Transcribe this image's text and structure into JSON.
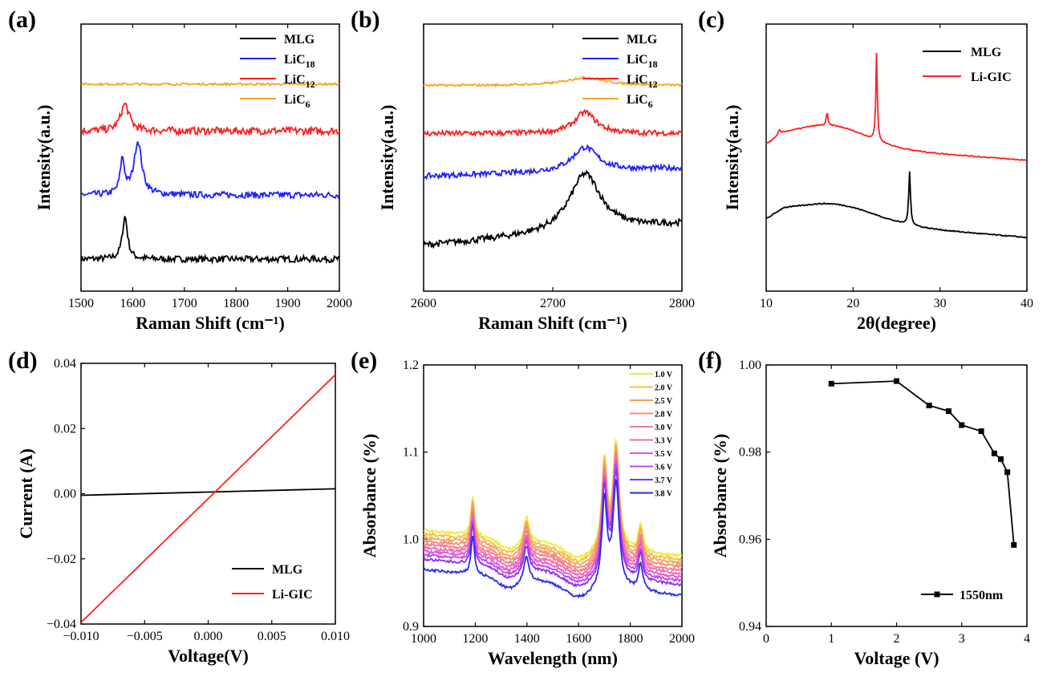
{
  "figure": {
    "colors": {
      "MLG": "#000000",
      "LiC18": "#1f1fff",
      "LiC12": "#ff1f1f",
      "LiC6": "#f5a623",
      "LiGIC": "#ff1f1f"
    }
  },
  "chart_data": [
    {
      "id": "a",
      "panel_label": "(a)",
      "type": "line",
      "title": "",
      "xlabel": "Raman Shift (cm⁻¹)",
      "ylabel": "Intensity(a.u.)",
      "xlim": [
        1500,
        2000
      ],
      "ylim": [
        0,
        1
      ],
      "xticks": [
        1500,
        1600,
        1700,
        1800,
        1900,
        2000
      ],
      "yticks": [],
      "legend": [
        {
          "label": "MLG",
          "sub": ""
        },
        {
          "label": "LiC",
          "sub": "18"
        },
        {
          "label": "LiC",
          "sub": "12"
        },
        {
          "label": "LiC",
          "sub": "6"
        }
      ],
      "series": [
        {
          "name": "MLG",
          "color": "#000000",
          "baseline": 0.12,
          "noise": 0.012,
          "peaks": [
            [
              1585,
              0.16,
              6
            ]
          ]
        },
        {
          "name": "LiC18",
          "color": "#1f1fff",
          "baseline": 0.36,
          "noise": 0.012,
          "peaks": [
            [
              1580,
              0.13,
              5
            ],
            [
              1610,
              0.2,
              9
            ]
          ]
        },
        {
          "name": "LiC12",
          "color": "#ff1f1f",
          "baseline": 0.6,
          "noise": 0.014,
          "peaks": [
            [
              1585,
              0.1,
              10
            ]
          ]
        },
        {
          "name": "LiC6",
          "color": "#f5a623",
          "baseline": 0.775,
          "noise": 0.004,
          "peaks": []
        }
      ]
    },
    {
      "id": "b",
      "panel_label": "(b)",
      "type": "line",
      "title": "",
      "xlabel": "Raman Shift (cm⁻¹)",
      "ylabel": "Intensity(a.u.)",
      "xlim": [
        2600,
        2800
      ],
      "ylim": [
        0,
        1
      ],
      "xticks": [
        2600,
        2700,
        2800
      ],
      "yticks": [],
      "legend": [
        {
          "label": "MLG",
          "sub": ""
        },
        {
          "label": "LiC",
          "sub": "18"
        },
        {
          "label": "LiC",
          "sub": "12"
        },
        {
          "label": "LiC",
          "sub": "6"
        }
      ],
      "series": [
        {
          "name": "MLG",
          "color": "#000000",
          "baseline": 0.17,
          "noise": 0.012,
          "peaks": [
            [
              2725,
              0.22,
              15
            ]
          ],
          "ramp": 0.08
        },
        {
          "name": "LiC18",
          "color": "#1f1fff",
          "baseline": 0.43,
          "noise": 0.01,
          "peaks": [
            [
              2725,
              0.09,
              12
            ]
          ],
          "ramp": 0.03
        },
        {
          "name": "LiC12",
          "color": "#ff1f1f",
          "baseline": 0.59,
          "noise": 0.01,
          "peaks": [
            [
              2725,
              0.08,
              10
            ]
          ],
          "ramp": 0.0
        },
        {
          "name": "LiC6",
          "color": "#f5a623",
          "baseline": 0.77,
          "noise": 0.004,
          "peaks": [
            [
              2725,
              0.03,
              18
            ]
          ],
          "ramp": 0.0
        }
      ]
    },
    {
      "id": "c",
      "panel_label": "(c)",
      "type": "line",
      "title": "",
      "xlabel": "2θ(degree)",
      "ylabel": "Intensity(a.u.)",
      "xlim": [
        10,
        40
      ],
      "ylim": [
        0,
        1
      ],
      "xticks": [
        10,
        20,
        30,
        40
      ],
      "yticks": [],
      "legend": [
        {
          "label": "MLG",
          "sub": ""
        },
        {
          "label": "Li-GIC",
          "sub": ""
        }
      ],
      "series": [
        {
          "name": "MLG",
          "color": "#000000",
          "kind": "xrd",
          "base": 0.3,
          "hump": [
            18,
            0.06,
            4.5
          ],
          "decay": 0.22,
          "sharp": [
            [
              26.5,
              0.2,
              0.12
            ]
          ]
        },
        {
          "name": "Li-GIC",
          "color": "#ff1f1f",
          "kind": "xrd",
          "base": 0.58,
          "hump": [
            17.5,
            0.07,
            4
          ],
          "decay": 0.2,
          "sharp": [
            [
              22.7,
              0.33,
              0.1
            ],
            [
              17,
              0.05,
              0.1
            ],
            [
              11.5,
              0.02,
              0.15
            ]
          ]
        }
      ]
    },
    {
      "id": "d",
      "panel_label": "(d)",
      "type": "line",
      "title": "",
      "xlabel": "Voltage(V)",
      "ylabel": "Current (A)",
      "xlim": [
        -0.01,
        0.01
      ],
      "ylim": [
        -0.04,
        0.04
      ],
      "xticks": [
        -0.01,
        -0.005,
        0.0,
        0.005,
        0.01
      ],
      "xtick_labels": [
        "−0.010",
        "−0.005",
        "0.000",
        "0.005",
        "0.010"
      ],
      "yticks": [
        -0.04,
        -0.02,
        0.0,
        0.02,
        0.04
      ],
      "ytick_labels": [
        "−0.04",
        "−0.02",
        "0.00",
        "0.02",
        "0.04"
      ],
      "legend": [
        {
          "label": "MLG",
          "sub": ""
        },
        {
          "label": "Li-GIC",
          "sub": ""
        }
      ],
      "series": [
        {
          "name": "MLG",
          "color": "#000000",
          "x": [
            -0.01,
            0.01
          ],
          "y": [
            -0.0005,
            0.0015
          ]
        },
        {
          "name": "Li-GIC",
          "color": "#ff1f1f",
          "x": [
            -0.01,
            0.01
          ],
          "y": [
            -0.0395,
            0.0365
          ]
        }
      ]
    },
    {
      "id": "e",
      "panel_label": "(e)",
      "type": "line",
      "title": "",
      "xlabel": "Wavelength (nm)",
      "ylabel": "Absorbance (%)",
      "xlim": [
        1000,
        2000
      ],
      "ylim": [
        0.9,
        1.2
      ],
      "xticks": [
        1000,
        1200,
        1400,
        1600,
        1800,
        2000
      ],
      "yticks": [
        0.9,
        1.0,
        1.1,
        1.2
      ],
      "ytick_labels": [
        "0.9",
        "1.0",
        "1.1",
        "1.2"
      ],
      "legend": [
        {
          "label": "1.0 V",
          "sub": ""
        },
        {
          "label": "2.0 V",
          "sub": ""
        },
        {
          "label": "2.5 V",
          "sub": ""
        },
        {
          "label": "2.8 V",
          "sub": ""
        },
        {
          "label": "3.0 V",
          "sub": ""
        },
        {
          "label": "3.3 V",
          "sub": ""
        },
        {
          "label": "3.5 V",
          "sub": ""
        },
        {
          "label": "3.6 V",
          "sub": ""
        },
        {
          "label": "3.7 V",
          "sub": ""
        },
        {
          "label": "3.8 V",
          "sub": ""
        }
      ],
      "series": [
        {
          "name": "1.0 V",
          "color": "#e8ef3a",
          "offset": 0.0
        },
        {
          "name": "2.0 V",
          "color": "#f5c040",
          "offset": -0.004
        },
        {
          "name": "2.5 V",
          "color": "#f7a35a",
          "offset": -0.008
        },
        {
          "name": "2.8 V",
          "color": "#f78c78",
          "offset": -0.012
        },
        {
          "name": "3.0 V",
          "color": "#f47a92",
          "offset": -0.016
        },
        {
          "name": "3.3 V",
          "color": "#f06bb0",
          "offset": -0.02
        },
        {
          "name": "3.5 V",
          "color": "#e455d6",
          "offset": -0.024
        },
        {
          "name": "3.6 V",
          "color": "#c444ee",
          "offset": -0.028
        },
        {
          "name": "3.7 V",
          "color": "#8a33f0",
          "offset": -0.033
        },
        {
          "name": "3.8 V",
          "color": "#2a2af0",
          "offset": -0.045
        }
      ]
    },
    {
      "id": "f",
      "panel_label": "(f)",
      "type": "line",
      "title": "",
      "xlabel": "Voltage (V)",
      "ylabel": "Absorbance (%)",
      "xlim": [
        0,
        4
      ],
      "ylim": [
        0.94,
        1.0
      ],
      "xticks": [
        0,
        1,
        2,
        3,
        4
      ],
      "yticks": [
        0.94,
        0.96,
        0.98,
        1.0
      ],
      "ytick_labels": [
        "0.94",
        "0.96",
        "0.98",
        "1.00"
      ],
      "legend": [
        {
          "label": "1550nm",
          "sub": ""
        }
      ],
      "series": [
        {
          "name": "1550nm",
          "color": "#000000",
          "x": [
            1.0,
            2.0,
            2.5,
            2.8,
            3.0,
            3.3,
            3.5,
            3.6,
            3.7,
            3.8
          ],
          "y": [
            0.9957,
            0.9963,
            0.9907,
            0.9894,
            0.9862,
            0.9848,
            0.9797,
            0.9784,
            0.9754,
            0.9587
          ]
        }
      ]
    }
  ]
}
